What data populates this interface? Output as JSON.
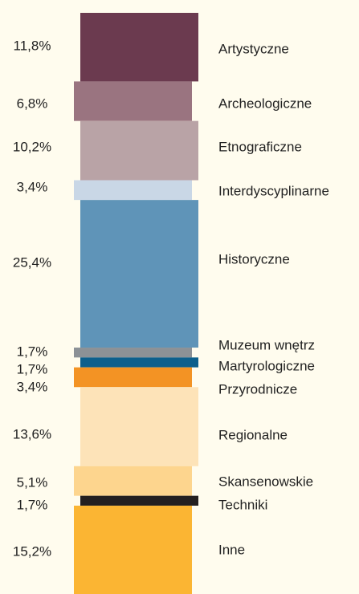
{
  "chart_data": {
    "type": "stacked-column",
    "categories": [
      "Artystyczne",
      "Archeologiczne",
      "Etnograficzne",
      "Interdyscyplinarne",
      "Historyczne",
      "Muzeum wnętrz",
      "Martyrologiczne",
      "Przyrodnicze",
      "Regionalne",
      "Skansenowskie",
      "Techniki",
      "Inne"
    ],
    "values": [
      11.8,
      6.8,
      10.2,
      3.4,
      25.4,
      1.7,
      1.7,
      3.4,
      13.6,
      5.1,
      1.7,
      15.2
    ],
    "value_labels": [
      "11,8%",
      "6,8%",
      "10,2%",
      "3,4%",
      "25,4%",
      "1,7%",
      "1,7%",
      "3,4%",
      "13,6%",
      "5,1%",
      "1,7%",
      "15,2%"
    ],
    "colors": [
      "#6b3a4f",
      "#9a7480",
      "#b9a3a6",
      "#c9d7e6",
      "#5f94b8",
      "#8c9196",
      "#0d5f8c",
      "#f39324",
      "#fde3b8",
      "#fdd58e",
      "#231f20",
      "#fbb533"
    ],
    "ylim": [
      0,
      100
    ]
  }
}
